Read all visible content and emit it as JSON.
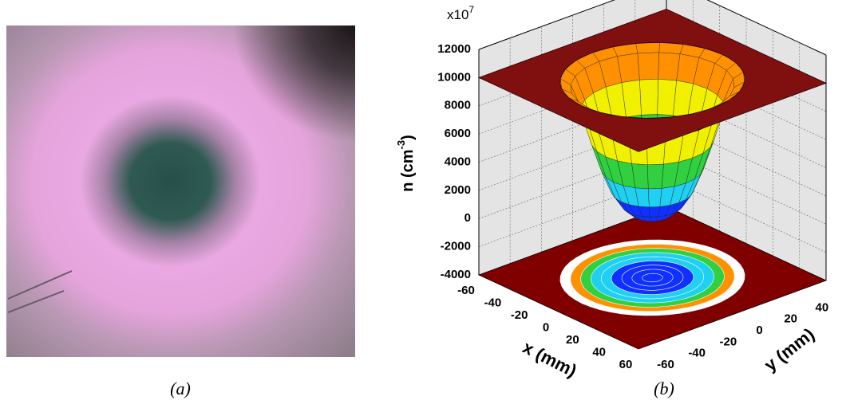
{
  "panel_a": {
    "caption": "(a)"
  },
  "chart_data": {
    "type": "surface3d",
    "caption": "(b)",
    "zlabel": {
      "text": "n (cm",
      "sup": "-3",
      "close": ")"
    },
    "multiplier": {
      "base": "x10",
      "exp": "7"
    },
    "xlabel": "x (mm)",
    "ylabel": "y (mm)",
    "xlim": [
      -60,
      60
    ],
    "xticks": [
      -60,
      -40,
      -20,
      0,
      20,
      40,
      60
    ],
    "ylim": [
      -60,
      60
    ],
    "yticks": [
      -60,
      -40,
      -20,
      0,
      20,
      40,
      60
    ],
    "zlim": [
      -4000,
      12000
    ],
    "zticks": [
      -4000,
      -2000,
      0,
      2000,
      4000,
      6000,
      8000,
      10000,
      12000
    ],
    "surface": {
      "radius": [
        0,
        5,
        10,
        15,
        20,
        25,
        30,
        35,
        40,
        45
      ],
      "values": [
        200,
        300,
        600,
        1200,
        2200,
        3800,
        5800,
        8000,
        9600,
        10000
      ]
    },
    "colormap": [
      "#1030ff",
      "#20d0f0",
      "#30d040",
      "#f0f000",
      "#ff9000",
      "#801010"
    ],
    "floor_color": "#800000",
    "grid": true
  }
}
